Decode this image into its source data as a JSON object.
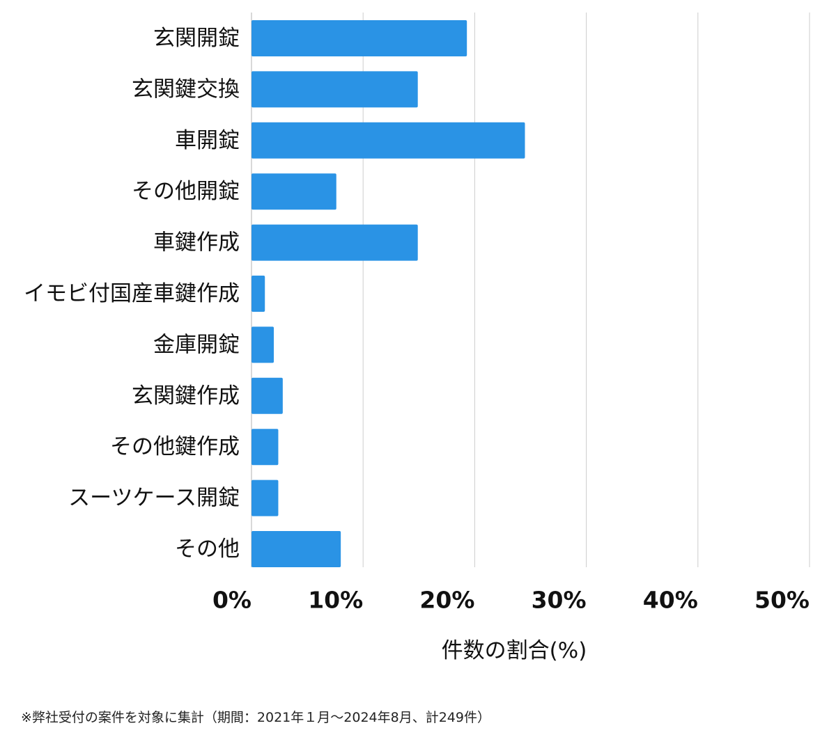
{
  "chart_data": {
    "type": "bar",
    "orientation": "horizontal",
    "categories": [
      "玄関開錠",
      "玄関鍵交換",
      "車開錠",
      "その他開錠",
      "車鍵作成",
      "イモビ付国産車鍵作成",
      "金庫開錠",
      "玄関鍵作成",
      "その他鍵作成",
      "スーツケース開錠",
      "その他"
    ],
    "values": [
      19.3,
      14.9,
      24.5,
      7.6,
      14.9,
      1.2,
      2.0,
      2.8,
      2.4,
      2.4,
      8.0
    ],
    "xlabel": "件数の割合(%)",
    "xlim": [
      0,
      50
    ],
    "xticks": [
      "0%",
      "10%",
      "20%",
      "30%",
      "40%",
      "50%"
    ],
    "grid": true,
    "bar_color": "#2A93E5",
    "grid_color": "#CCCCCC"
  },
  "footnote": "※弊社受付の案件を対象に集計（期間：2021年１月〜2024年8月、計249件）"
}
